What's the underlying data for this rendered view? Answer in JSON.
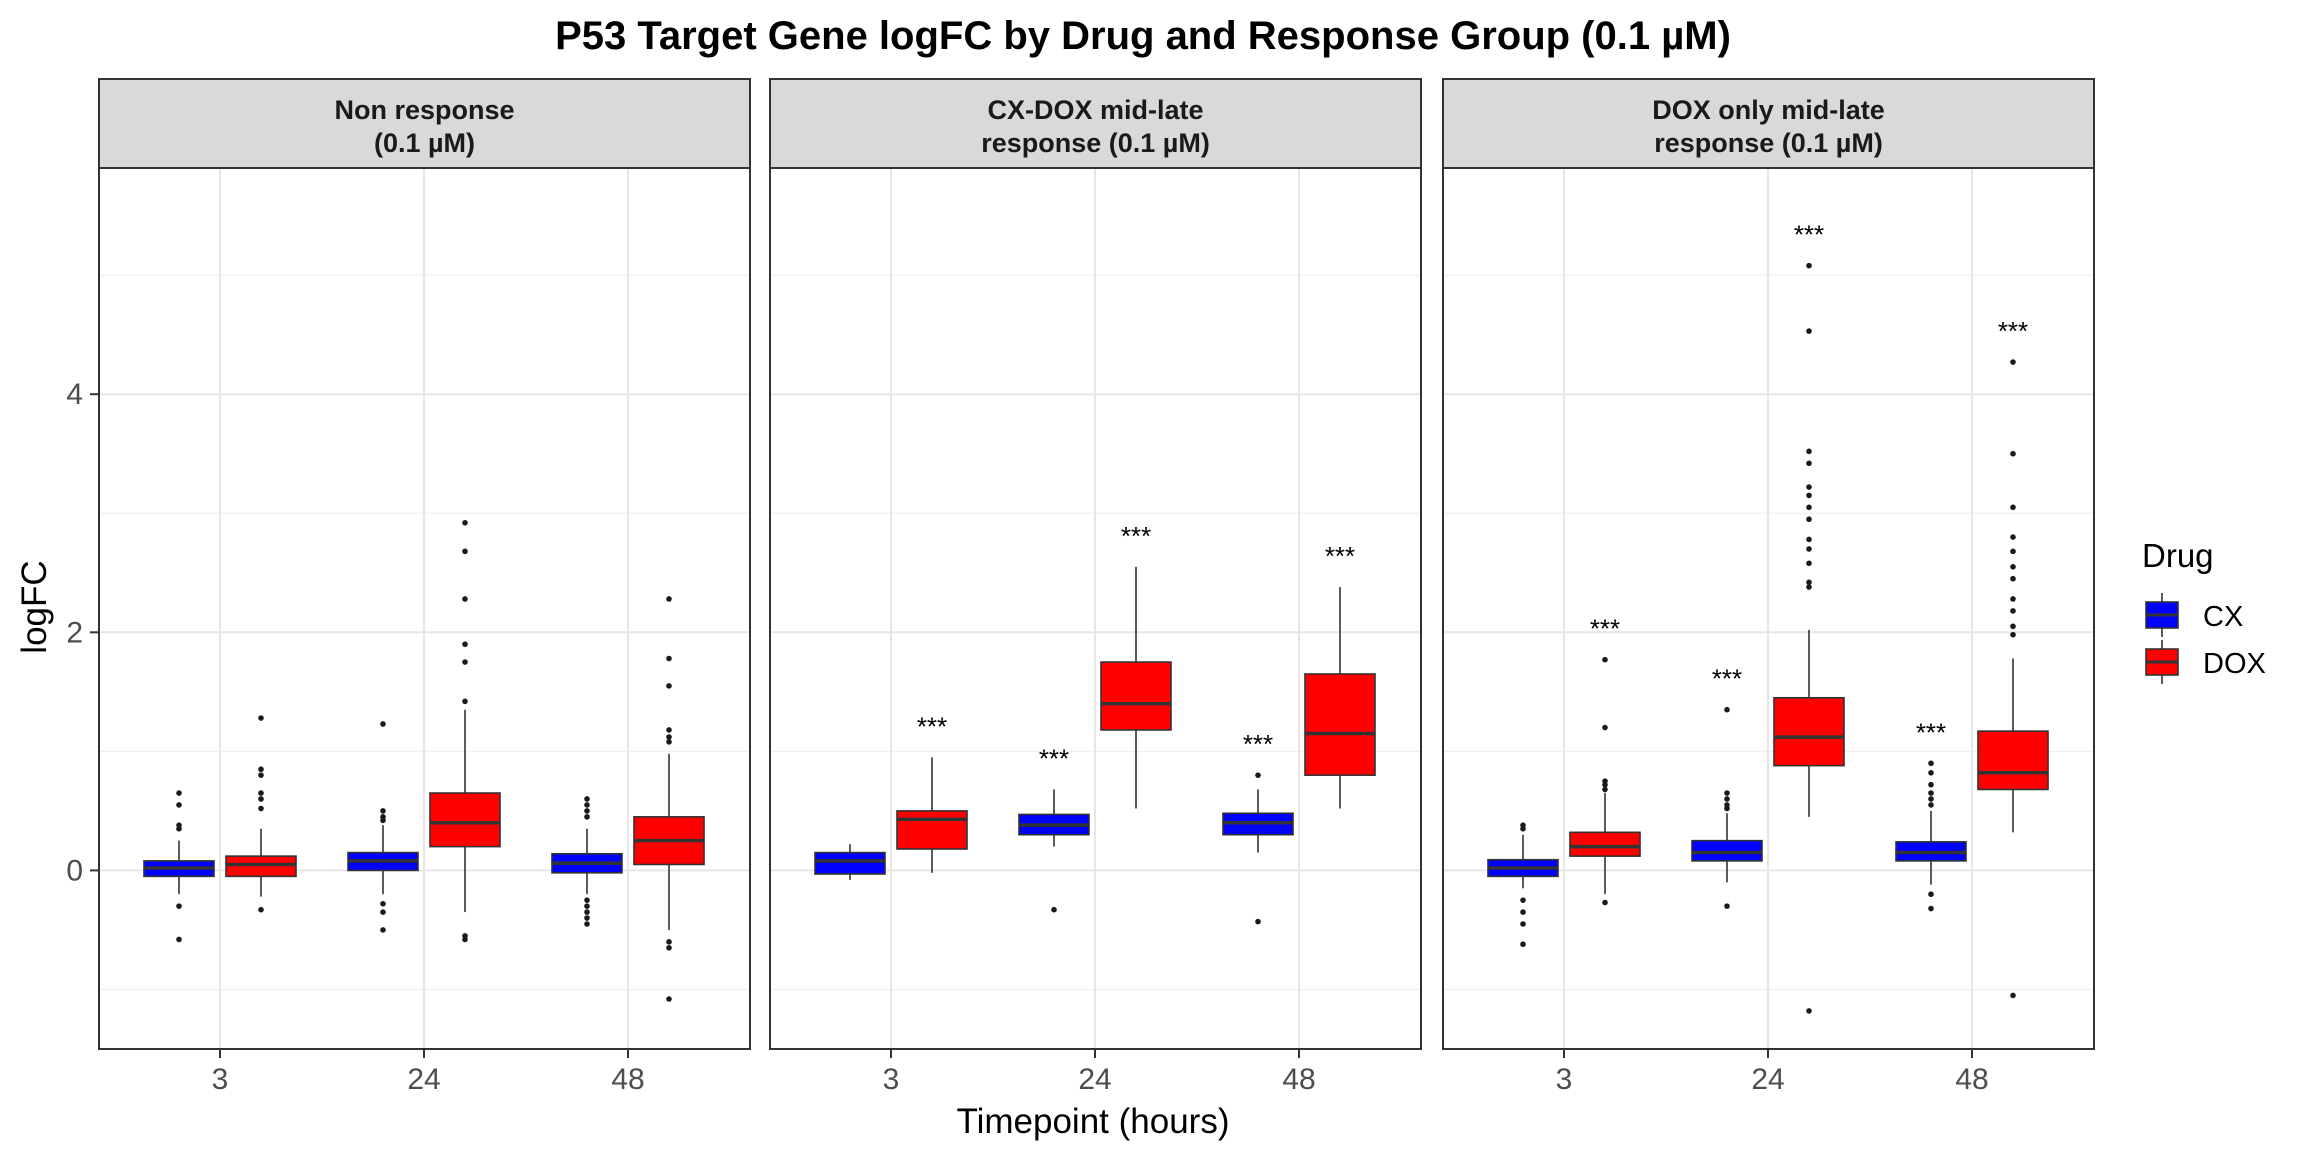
{
  "chart_data": {
    "type": "boxplot",
    "title": "P53 Target Gene logFC by Drug and Response Group (0.1 µM)",
    "xlabel": "Timepoint (hours)",
    "ylabel": "logFC",
    "ylim": [
      -1.5,
      5.9
    ],
    "yticks": [
      0,
      2,
      4
    ],
    "categories": [
      "3",
      "24",
      "48"
    ],
    "legend": {
      "title": "Drug",
      "position": "right",
      "items": [
        {
          "name": "CX",
          "color": "#0000ff"
        },
        {
          "name": "DOX",
          "color": "#ff0000"
        }
      ]
    },
    "significance_label": "***",
    "panels": [
      {
        "strip": [
          "Non response",
          "(0.1 µM)"
        ],
        "groups": [
          {
            "timepoint": "3",
            "drug": "CX",
            "q1": -0.05,
            "median": 0.02,
            "q3": 0.08,
            "whisker_low": -0.2,
            "whisker_high": 0.25,
            "outliers": [
              0.65,
              0.55,
              0.38,
              0.35,
              -0.3,
              -0.58
            ],
            "sig": ""
          },
          {
            "timepoint": "3",
            "drug": "DOX",
            "q1": -0.05,
            "median": 0.05,
            "q3": 0.12,
            "whisker_low": -0.22,
            "whisker_high": 0.35,
            "outliers": [
              1.28,
              0.85,
              0.8,
              0.65,
              0.6,
              0.52,
              -0.33
            ],
            "sig": ""
          },
          {
            "timepoint": "24",
            "drug": "CX",
            "q1": 0.0,
            "median": 0.08,
            "q3": 0.15,
            "whisker_low": -0.2,
            "whisker_high": 0.38,
            "outliers": [
              1.23,
              0.5,
              0.45,
              0.42,
              -0.28,
              -0.35,
              -0.5
            ],
            "sig": ""
          },
          {
            "timepoint": "24",
            "drug": "DOX",
            "q1": 0.2,
            "median": 0.4,
            "q3": 0.65,
            "whisker_low": -0.35,
            "whisker_high": 1.35,
            "outliers": [
              2.92,
              2.68,
              2.28,
              1.9,
              1.75,
              1.42,
              -0.55,
              -0.58
            ],
            "sig": ""
          },
          {
            "timepoint": "48",
            "drug": "CX",
            "q1": -0.02,
            "median": 0.06,
            "q3": 0.14,
            "whisker_low": -0.2,
            "whisker_high": 0.35,
            "outliers": [
              0.6,
              0.55,
              0.5,
              0.45,
              -0.25,
              -0.3,
              -0.35,
              -0.4,
              -0.45
            ],
            "sig": ""
          },
          {
            "timepoint": "48",
            "drug": "DOX",
            "q1": 0.05,
            "median": 0.25,
            "q3": 0.45,
            "whisker_low": -0.5,
            "whisker_high": 0.98,
            "outliers": [
              2.28,
              1.78,
              1.55,
              1.18,
              1.12,
              1.08,
              -0.6,
              -0.65,
              -1.08
            ],
            "sig": ""
          }
        ]
      },
      {
        "strip": [
          "CX-DOX mid-late",
          "response (0.1 µM)"
        ],
        "groups": [
          {
            "timepoint": "3",
            "drug": "CX",
            "q1": -0.03,
            "median": 0.08,
            "q3": 0.15,
            "whisker_low": -0.08,
            "whisker_high": 0.22,
            "outliers": [],
            "sig": ""
          },
          {
            "timepoint": "3",
            "drug": "DOX",
            "q1": 0.18,
            "median": 0.43,
            "q3": 0.5,
            "whisker_low": -0.02,
            "whisker_high": 0.95,
            "outliers": [],
            "sig": "***"
          },
          {
            "timepoint": "24",
            "drug": "CX",
            "q1": 0.3,
            "median": 0.38,
            "q3": 0.47,
            "whisker_low": 0.2,
            "whisker_high": 0.68,
            "outliers": [
              -0.33
            ],
            "sig": "***"
          },
          {
            "timepoint": "24",
            "drug": "DOX",
            "q1": 1.18,
            "median": 1.4,
            "q3": 1.75,
            "whisker_low": 0.52,
            "whisker_high": 2.55,
            "outliers": [],
            "sig": "***"
          },
          {
            "timepoint": "48",
            "drug": "CX",
            "q1": 0.3,
            "median": 0.4,
            "q3": 0.48,
            "whisker_low": 0.15,
            "whisker_high": 0.68,
            "outliers": [
              0.8,
              -0.43
            ],
            "sig": "***"
          },
          {
            "timepoint": "48",
            "drug": "DOX",
            "q1": 0.8,
            "median": 1.15,
            "q3": 1.65,
            "whisker_low": 0.52,
            "whisker_high": 2.38,
            "outliers": [],
            "sig": "***"
          }
        ]
      },
      {
        "strip": [
          "DOX only mid-late",
          "response (0.1 µM)"
        ],
        "groups": [
          {
            "timepoint": "3",
            "drug": "CX",
            "q1": -0.05,
            "median": 0.02,
            "q3": 0.09,
            "whisker_low": -0.15,
            "whisker_high": 0.3,
            "outliers": [
              0.38,
              0.35,
              -0.25,
              -0.35,
              -0.45,
              -0.62
            ],
            "sig": ""
          },
          {
            "timepoint": "3",
            "drug": "DOX",
            "q1": 0.12,
            "median": 0.2,
            "q3": 0.32,
            "whisker_low": -0.2,
            "whisker_high": 0.65,
            "outliers": [
              1.77,
              1.2,
              0.75,
              0.72,
              0.68,
              -0.27
            ],
            "sig": "***"
          },
          {
            "timepoint": "24",
            "drug": "CX",
            "q1": 0.08,
            "median": 0.15,
            "q3": 0.25,
            "whisker_low": -0.1,
            "whisker_high": 0.48,
            "outliers": [
              1.35,
              0.65,
              0.6,
              0.55,
              0.52,
              -0.3
            ],
            "sig": "***"
          },
          {
            "timepoint": "24",
            "drug": "DOX",
            "q1": 0.88,
            "median": 1.12,
            "q3": 1.45,
            "whisker_low": 0.45,
            "whisker_high": 2.02,
            "outliers": [
              5.08,
              4.53,
              3.52,
              3.42,
              3.22,
              3.15,
              3.05,
              2.95,
              2.78,
              2.7,
              2.58,
              2.42,
              2.38,
              -1.18
            ],
            "sig": "***"
          },
          {
            "timepoint": "48",
            "drug": "CX",
            "q1": 0.08,
            "median": 0.15,
            "q3": 0.24,
            "whisker_low": -0.12,
            "whisker_high": 0.5,
            "outliers": [
              0.9,
              0.82,
              0.72,
              0.65,
              0.6,
              0.55,
              -0.2,
              -0.32
            ],
            "sig": "***"
          },
          {
            "timepoint": "48",
            "drug": "DOX",
            "q1": 0.68,
            "median": 0.82,
            "q3": 1.17,
            "whisker_low": 0.32,
            "whisker_high": 1.78,
            "outliers": [
              4.27,
              3.5,
              3.05,
              2.8,
              2.68,
              2.55,
              2.45,
              2.28,
              2.18,
              2.05,
              1.98,
              -1.05
            ],
            "sig": "***"
          }
        ]
      }
    ]
  }
}
